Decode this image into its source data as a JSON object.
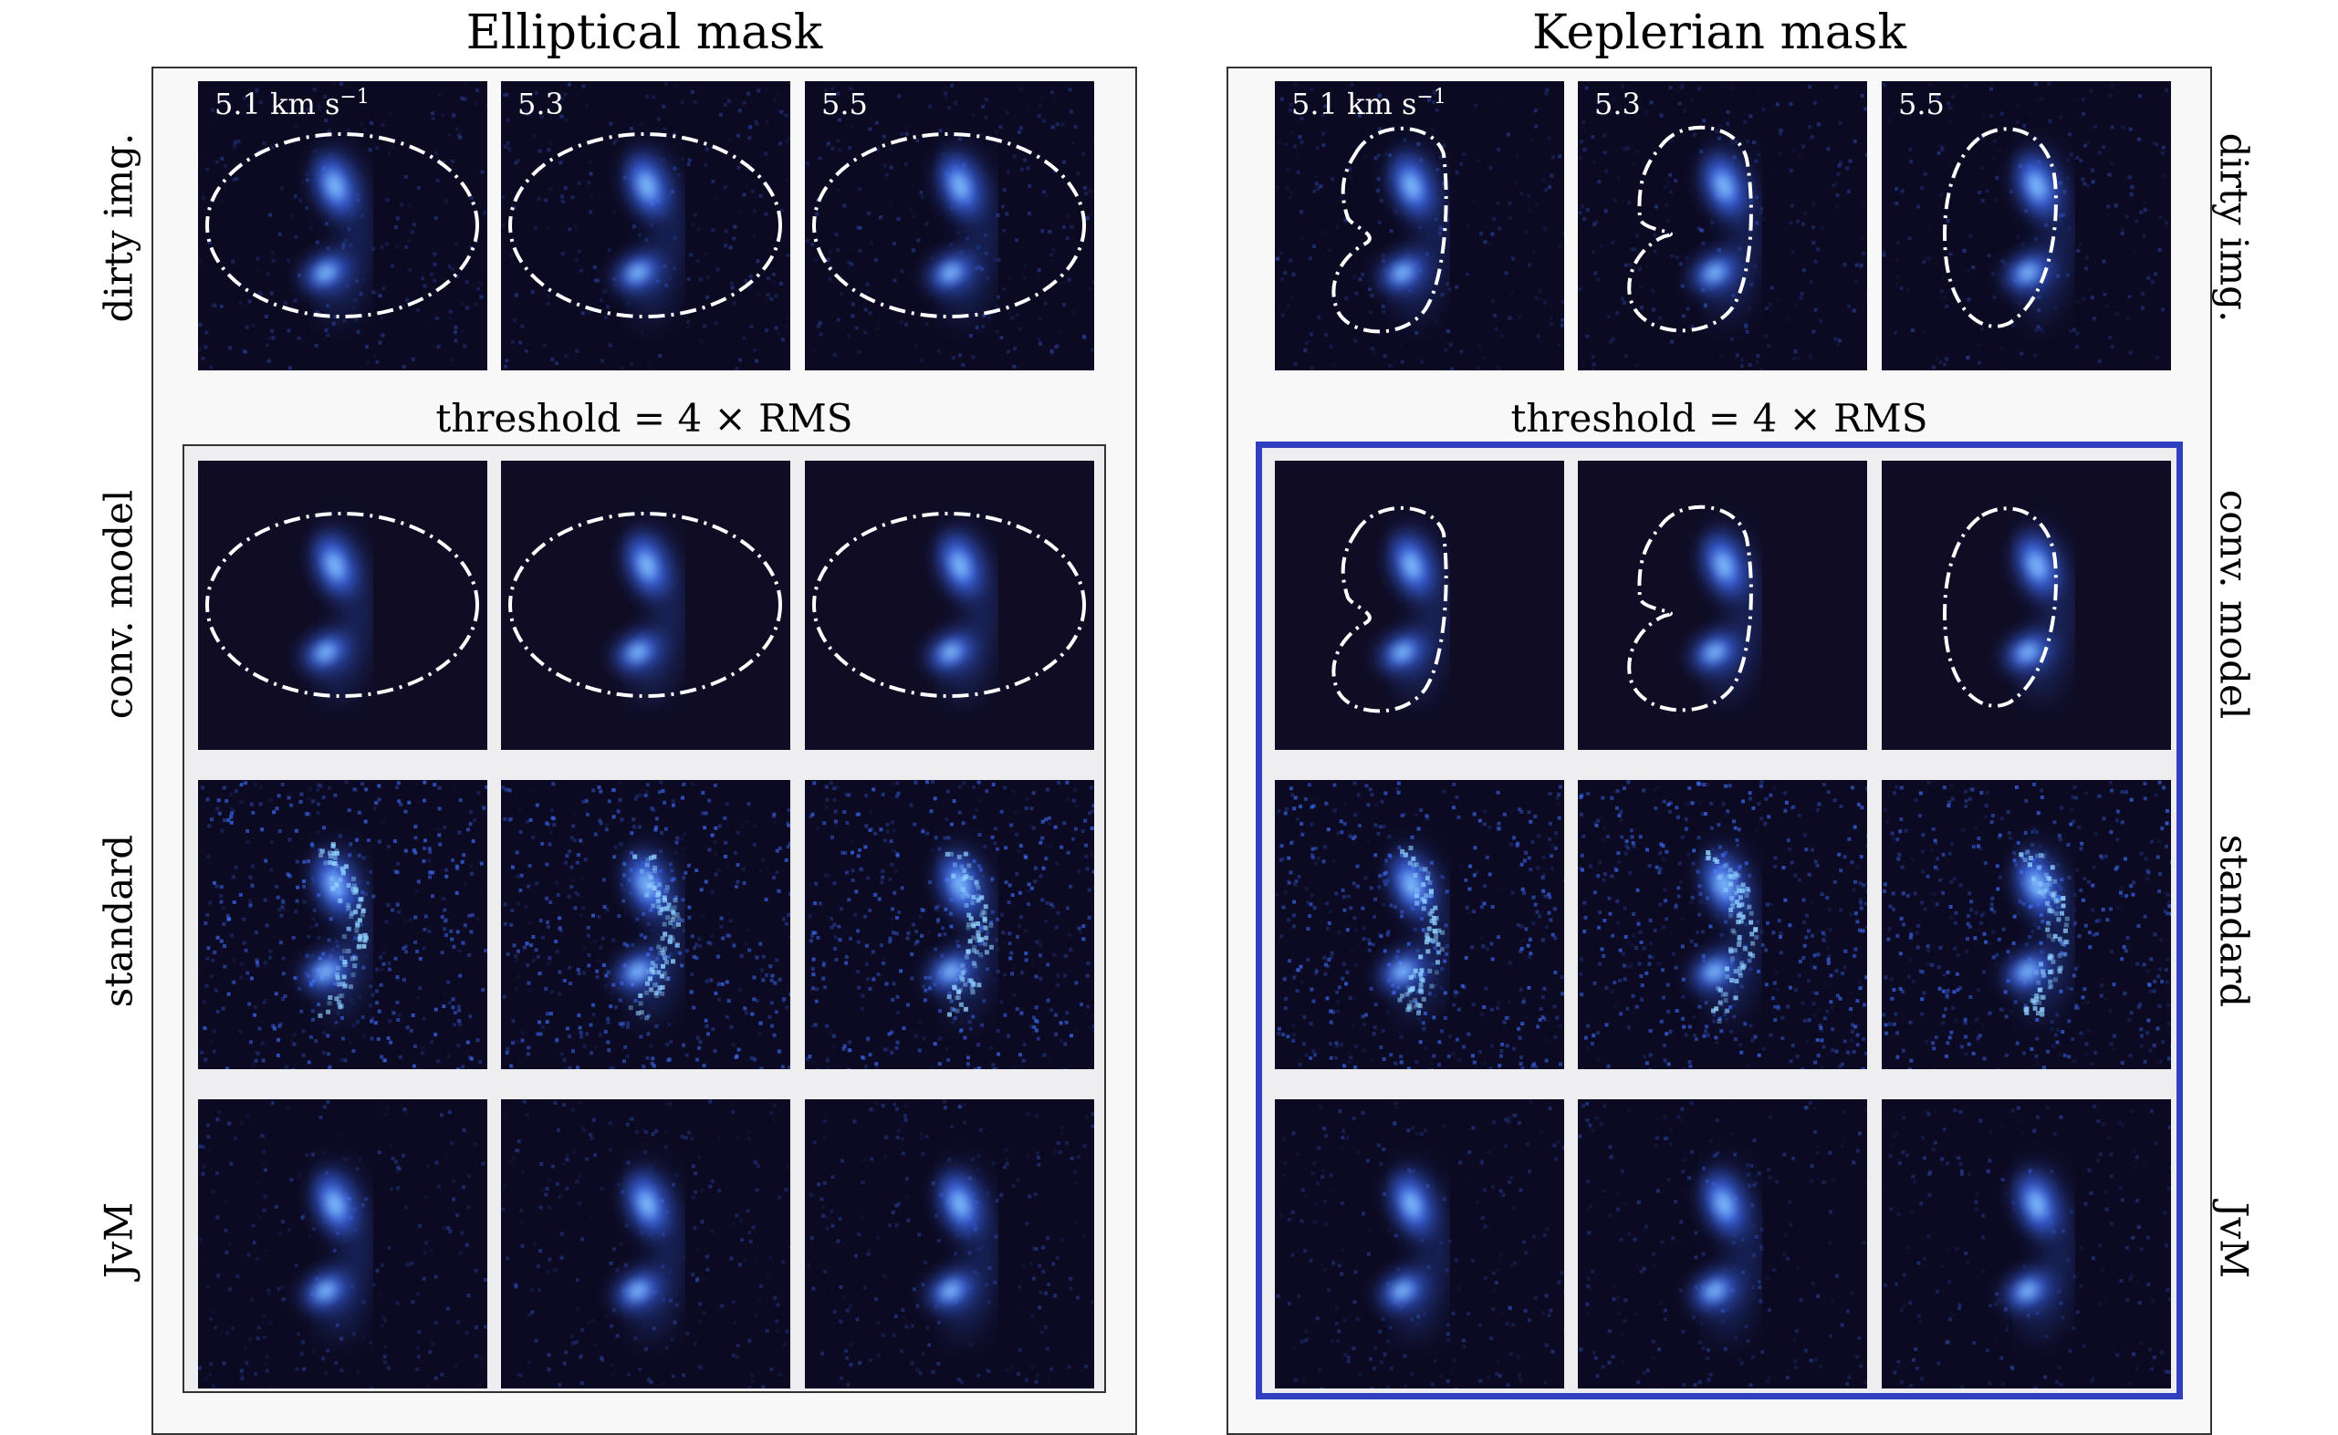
{
  "titles": {
    "left": "Elliptical mask",
    "right": "Keplerian mask"
  },
  "threshold_label": "threshold = 4 × RMS",
  "row_labels": [
    "dirty img.",
    "conv. model",
    "standard",
    "JvM"
  ],
  "velocity_labels": {
    "first_value": "5.1 km s",
    "first_exponent": "−1",
    "second": "5.3",
    "third": "5.5"
  },
  "colors": {
    "panel_background": "#0c0a22",
    "model_background": "#0f0c24",
    "emission": "#3f6fff",
    "emission_core": "#8fd0ff",
    "mask_outline": "#ffffff",
    "highlight_border": "#2f3fc0"
  }
}
